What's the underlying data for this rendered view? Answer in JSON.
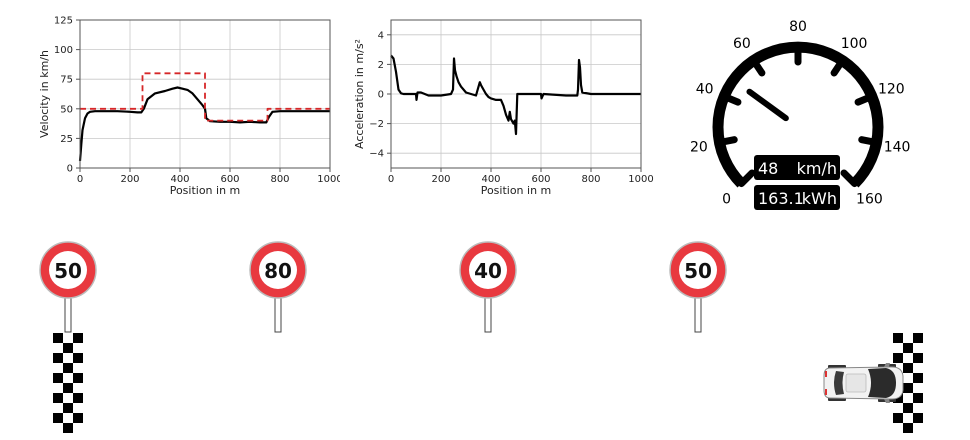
{
  "velocity_chart": {
    "type": "line",
    "xlabel": "Position in m",
    "ylabel": "Velocity in km/h",
    "xlim": [
      0,
      1000
    ],
    "ylim": [
      0,
      125
    ],
    "xticks": [
      "0",
      "200",
      "400",
      "600",
      "800",
      "1000"
    ],
    "yticks": [
      "0",
      "25",
      "50",
      "75",
      "100",
      "125"
    ],
    "grid": true,
    "series": [
      {
        "color": "#000000",
        "style": "solid",
        "x": [
          0,
          5,
          10,
          20,
          30,
          40,
          60,
          100,
          150,
          200,
          230,
          245,
          255,
          270,
          300,
          340,
          370,
          390,
          410,
          430,
          450,
          470,
          490,
          500,
          505,
          520,
          560,
          600,
          640,
          680,
          720,
          745,
          755,
          770,
          800,
          850,
          900,
          950,
          1000
        ],
        "y": [
          6,
          20,
          32,
          42,
          46,
          47.5,
          48,
          48,
          48,
          47.5,
          47,
          47,
          50,
          58,
          63,
          65,
          67,
          68,
          67,
          66,
          63,
          58,
          53,
          50,
          42,
          39.5,
          39,
          39,
          38.5,
          39,
          38.5,
          38.5,
          43,
          47.5,
          48,
          48,
          48,
          48,
          48
        ]
      },
      {
        "color": "#d62728",
        "style": "dashed",
        "x": [
          0,
          250,
          250,
          500,
          500,
          750,
          750,
          1000
        ],
        "y": [
          50,
          50,
          80,
          80,
          40,
          40,
          50,
          50
        ]
      }
    ]
  },
  "accel_chart": {
    "type": "line",
    "xlabel": "Position in m",
    "ylabel": "Acceleration in m/s²",
    "xlim": [
      0,
      1000
    ],
    "ylim": [
      -5,
      5
    ],
    "xticks": [
      "0",
      "200",
      "400",
      "600",
      "800",
      "1000"
    ],
    "yticks": [
      "-4",
      "-2",
      "0",
      "2",
      "4"
    ],
    "grid": true,
    "series": [
      {
        "color": "#000000",
        "style": "solid",
        "x": [
          0,
          10,
          20,
          30,
          40,
          50,
          60,
          80,
          100,
          102,
          106,
          120,
          150,
          200,
          240,
          248,
          252,
          256,
          262,
          270,
          280,
          300,
          340,
          355,
          360,
          370,
          380,
          390,
          400,
          420,
          440,
          450,
          460,
          470,
          475,
          480,
          490,
          495,
          500,
          505,
          507,
          515,
          560,
          600,
          602,
          610,
          700,
          745,
          748,
          752,
          756,
          760,
          765,
          800,
          900,
          1000
        ],
        "y": [
          2.6,
          2.4,
          1.5,
          0.3,
          0.05,
          0.0,
          0.0,
          0.0,
          0.0,
          -0.4,
          0.1,
          0.1,
          -0.1,
          -0.1,
          0.0,
          0.3,
          2.4,
          1.6,
          1.2,
          0.8,
          0.5,
          0.1,
          -0.1,
          0.8,
          0.6,
          0.3,
          0.0,
          -0.2,
          -0.3,
          -0.4,
          -0.4,
          -0.8,
          -1.4,
          -1.8,
          -1.2,
          -1.7,
          -2.0,
          -1.8,
          -2.7,
          0.0,
          0.0,
          0.0,
          0.0,
          0.0,
          -0.3,
          0.0,
          -0.1,
          -0.1,
          0.3,
          2.3,
          1.8,
          0.6,
          0.1,
          0.0,
          0.0,
          0.0
        ]
      }
    ]
  },
  "speedometer": {
    "min": 0,
    "max": 160,
    "value_kmh": 48,
    "ticks": [
      "0",
      "20",
      "40",
      "60",
      "80",
      "100",
      "120",
      "140",
      "160"
    ],
    "speed_readout": "48",
    "speed_unit": "km/h",
    "energy_readout": "163.1",
    "energy_unit": "kWh"
  },
  "speed_signs": [
    {
      "label": "50"
    },
    {
      "label": "80"
    },
    {
      "label": "40"
    },
    {
      "label": "50"
    }
  ],
  "colors": {
    "sign_red": "#e8393f",
    "limit_line": "#d62728",
    "grid": "#c8c8c8",
    "car_body": "#f2f2f2"
  },
  "icons": {
    "start_flag": "checkered-flag-icon",
    "finish_flag": "checkered-flag-icon",
    "car": "car-icon"
  }
}
